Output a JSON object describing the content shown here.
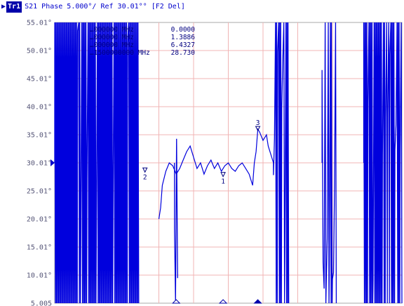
{
  "header": {
    "trace_label": "Tr1",
    "title_text": "S21 Phase 5.000°/ Ref 30.01°° [F2 Del]"
  },
  "chart_data": {
    "type": "line",
    "title": "S21 Phase 5.000°/ Ref 30.01°° [F2 Del]",
    "ylim": [
      5.005,
      55.01
    ],
    "y_tick_labels": [
      "55.01°",
      "50.01°",
      "45.01°",
      "40.01°",
      "35.01°",
      "30.01°",
      "25.01°",
      "20.01°",
      "15.01°",
      "10.01°",
      "5.005"
    ],
    "y_ticks": [
      55.01,
      50.01,
      45.01,
      40.01,
      35.01,
      30.01,
      25.01,
      20.01,
      15.01,
      10.01,
      5.005
    ],
    "reference_value": 30.01,
    "grid": true,
    "trace_color": "#0000dd",
    "grid_color": "#f0b4b4",
    "marker_table": [
      {
        "freq_text": "…000000 MHz",
        "value_text": "0.0000"
      },
      {
        "freq_text": "…000000 MHz",
        "value_text": "1.3886"
      },
      {
        "freq_text": "…000000 MHz",
        "value_text": "6.4327"
      },
      {
        "freq_text": "…1500000000 MHz",
        "value_text": "28.730"
      }
    ],
    "markers": [
      {
        "label": "1",
        "x_div": 4.85,
        "y": 27.8
      },
      {
        "label": "2",
        "x_div": 2.6,
        "y": 28.6
      },
      {
        "label": "3",
        "x_div": 5.85,
        "y": 36.0
      }
    ],
    "series": [
      {
        "values": [
          [
            3.0,
            20.0
          ],
          [
            3.05,
            22.0
          ],
          [
            3.1,
            26.0
          ],
          [
            3.2,
            28.5
          ],
          [
            3.3,
            30.0
          ],
          [
            3.4,
            29.5
          ],
          [
            3.5,
            28.0
          ],
          [
            3.6,
            29.0
          ],
          [
            3.7,
            30.5
          ],
          [
            3.8,
            32.0
          ],
          [
            3.9,
            33.0
          ],
          [
            4.0,
            31.0
          ],
          [
            4.1,
            29.0
          ],
          [
            4.2,
            30.0
          ],
          [
            4.3,
            28.0
          ],
          [
            4.4,
            29.5
          ],
          [
            4.5,
            30.5
          ],
          [
            4.6,
            29.0
          ],
          [
            4.7,
            30.0
          ],
          [
            4.8,
            28.5
          ],
          [
            4.9,
            29.5
          ],
          [
            5.0,
            30.0
          ],
          [
            5.1,
            29.0
          ],
          [
            5.2,
            28.5
          ],
          [
            5.3,
            29.5
          ],
          [
            5.4,
            30.0
          ],
          [
            5.5,
            29.0
          ],
          [
            5.6,
            28.0
          ],
          [
            5.7,
            26.0
          ],
          [
            5.75,
            30.0
          ],
          [
            5.8,
            32.0
          ],
          [
            5.85,
            36.0
          ],
          [
            5.9,
            35.5
          ],
          [
            6.0,
            34.0
          ],
          [
            6.1,
            35.0
          ],
          [
            6.15,
            33.0
          ],
          [
            6.2,
            32.0
          ],
          [
            6.3,
            30.0
          ]
        ]
      }
    ],
    "stimulus_markers": [
      {
        "x_div": 3.5,
        "filled": false
      },
      {
        "x_div": 4.85,
        "filled": false
      },
      {
        "x_div": 5.85,
        "filled": true
      }
    ]
  }
}
